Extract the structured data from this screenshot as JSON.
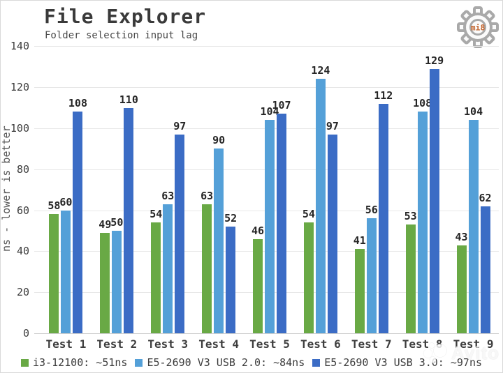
{
  "header": {
    "title": "File Explorer",
    "subtitle": "Folder selection input lag",
    "badge": "mi8",
    "badge_color": "#c2642d"
  },
  "watermark": {
    "text": "Avito"
  },
  "chart_data": {
    "type": "bar",
    "title": "File Explorer",
    "subtitle": "Folder selection input lag",
    "xlabel": "",
    "ylabel": "ns - lower is better",
    "ylim": [
      0,
      140
    ],
    "yticks": [
      0,
      20,
      40,
      60,
      80,
      100,
      120,
      140
    ],
    "grid": true,
    "legend_position": "bottom",
    "categories": [
      "Test 1",
      "Test 2",
      "Test 3",
      "Test 4",
      "Test 5",
      "Test 6",
      "Test 7",
      "Test 8",
      "Test 9"
    ],
    "series": [
      {
        "name": "i3-12100",
        "legend": "i3-12100: ~51ns",
        "color": "#69a945",
        "values": [
          58,
          49,
          54,
          63,
          46,
          54,
          41,
          53,
          43
        ]
      },
      {
        "name": "E5-2690 V3 USB 2.0",
        "legend": "E5-2690 V3 USB 2.0: ~84ns",
        "color": "#54a0d8",
        "values": [
          60,
          50,
          63,
          90,
          104,
          124,
          56,
          108,
          104
        ]
      },
      {
        "name": "E5-2690 V3 USB 3.0",
        "legend": "E5-2690 V3 USB 3.0: ~97ns",
        "color": "#3b6cc5",
        "values": [
          108,
          110,
          97,
          52,
          107,
          97,
          112,
          129,
          62
        ]
      }
    ]
  }
}
